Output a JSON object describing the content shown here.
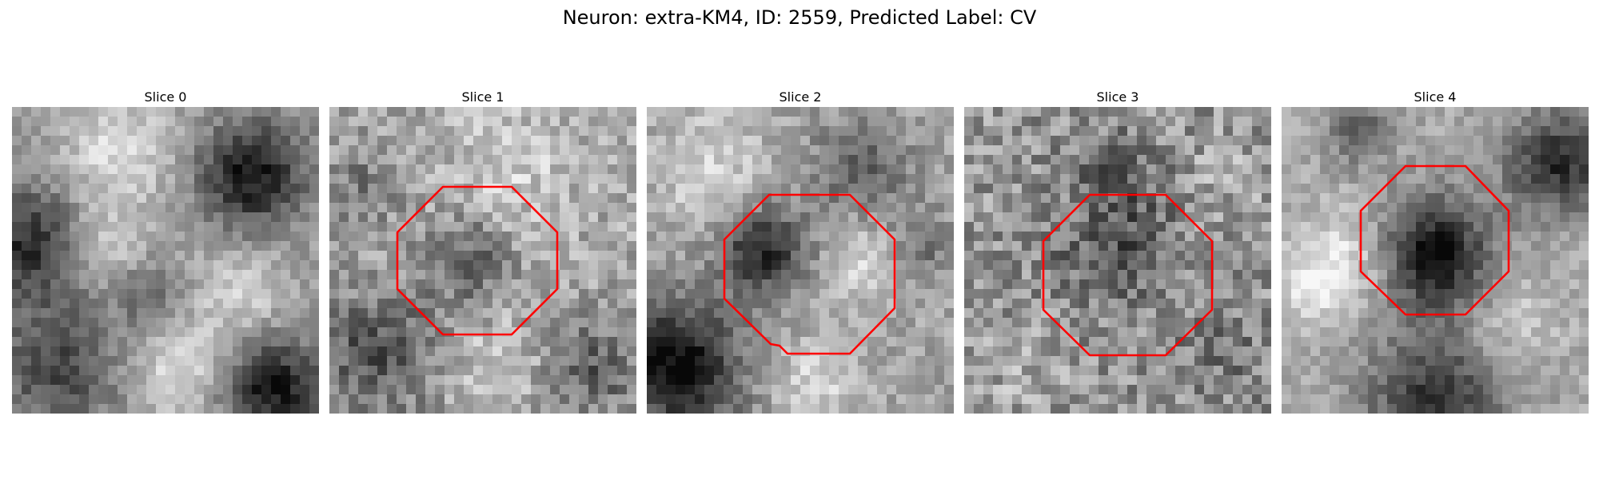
{
  "figure": {
    "title": "Neuron: extra-KM4, ID: 2559, Predicted Label: CV",
    "contour_color": "#ff0000"
  },
  "panels": [
    {
      "title": "Slice 0",
      "has_contour": false
    },
    {
      "title": "Slice 1",
      "has_contour": true
    },
    {
      "title": "Slice 2",
      "has_contour": true
    },
    {
      "title": "Slice 3",
      "has_contour": true
    },
    {
      "title": "Slice 4",
      "has_contour": true
    }
  ]
}
